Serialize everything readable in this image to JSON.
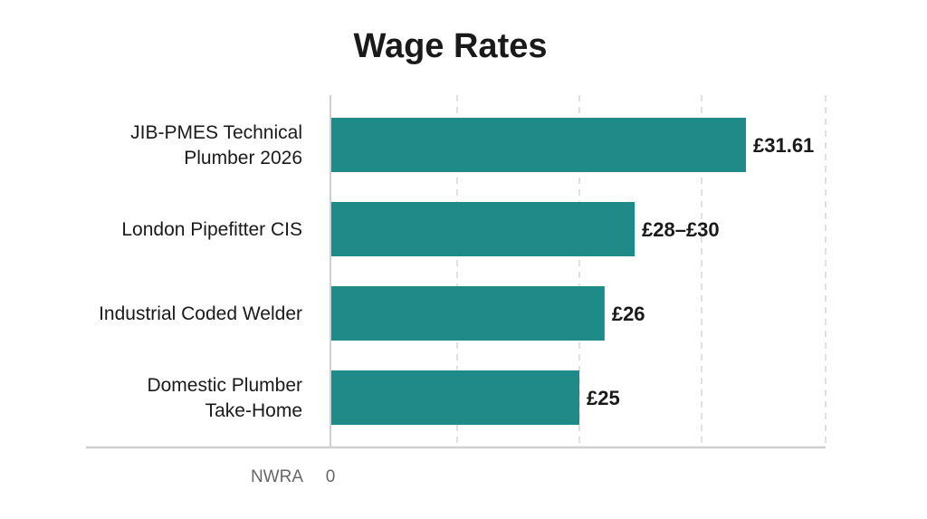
{
  "chart_data": {
    "type": "bar",
    "orientation": "horizontal",
    "title": "Wage Rates",
    "categories": [
      [
        "JIB-PMES Technical",
        "Plumber 2026"
      ],
      [
        "London Pipefitter CIS"
      ],
      [
        "Industrial Coded Welder"
      ],
      [
        "Domestic Plumber",
        "Take-Home"
      ]
    ],
    "values": [
      31.61,
      28,
      26,
      25
    ],
    "value_ranges": [
      null,
      [
        28,
        30
      ],
      null,
      null
    ],
    "data_labels": [
      "£31.61",
      "£28–£30",
      "£26",
      "£25"
    ],
    "x_tick_labels": [
      "0"
    ],
    "x_axis_note": "NWRA",
    "xlabel": "",
    "ylabel": "",
    "grid": "vertical dashed",
    "bar_color": "#1f8a87"
  }
}
